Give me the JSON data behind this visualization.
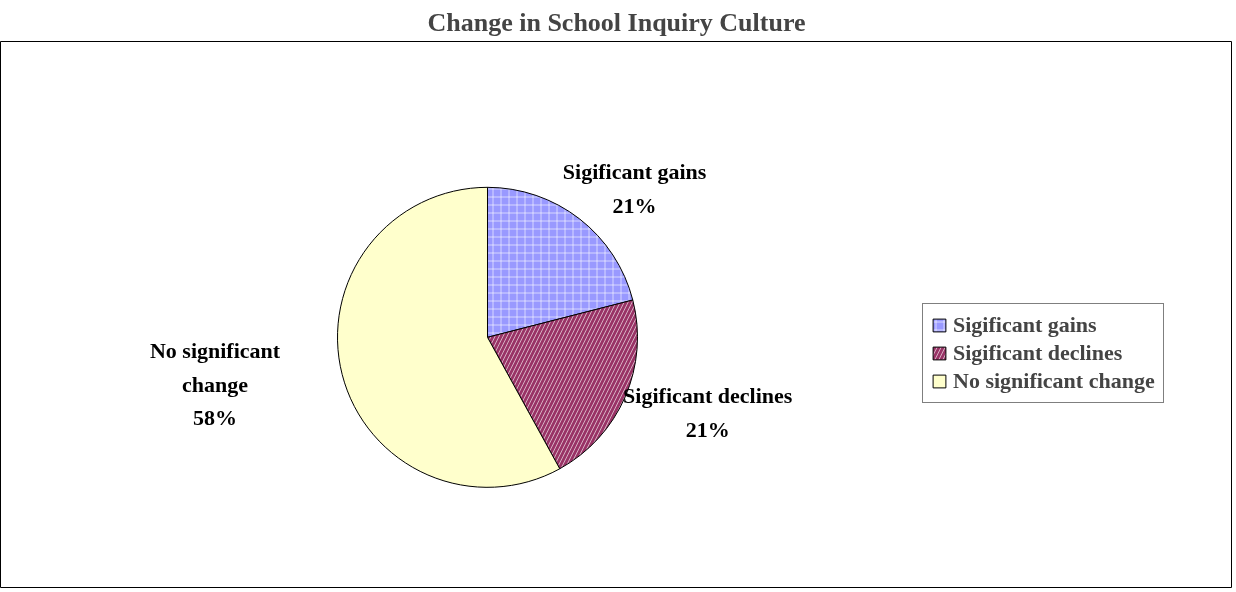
{
  "chart_data": {
    "type": "pie",
    "title": "Change in School Inquiry Culture",
    "categories": [
      "Sigificant gains",
      "Sigificant declines",
      "No significant change"
    ],
    "values": [
      21,
      21,
      58
    ],
    "value_labels": [
      "21%",
      "21%",
      "58%"
    ],
    "colors": [
      "#9999ff",
      "#993366",
      "#ffffcc"
    ],
    "legend": "right"
  }
}
